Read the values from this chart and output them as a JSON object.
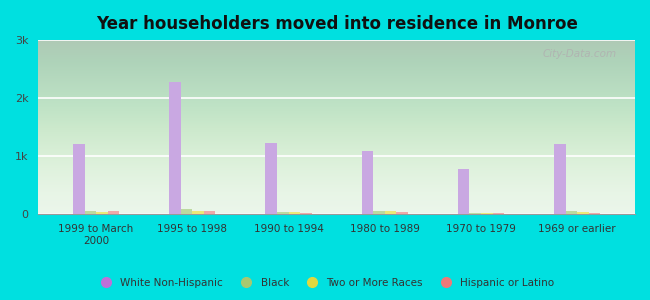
{
  "title": "Year householders moved into residence in Monroe",
  "categories": [
    "1999 to March\n2000",
    "1995 to 1998",
    "1990 to 1994",
    "1980 to 1989",
    "1970 to 1979",
    "1969 or earlier"
  ],
  "series": {
    "White Non-Hispanic": [
      1200,
      2280,
      1230,
      1080,
      780,
      1200
    ],
    "Black": [
      55,
      90,
      40,
      50,
      20,
      50
    ],
    "Two or More Races": [
      40,
      55,
      30,
      45,
      15,
      40
    ],
    "Hispanic or Latino": [
      60,
      45,
      20,
      30,
      20,
      20
    ]
  },
  "colors": {
    "White Non-Hispanic": "#c9a8e2",
    "Black": "#bdd9a0",
    "Two or More Races": "#ede878",
    "Hispanic or Latino": "#f0a8a8"
  },
  "legend_marker_colors": {
    "White Non-Hispanic": "#c070d8",
    "Black": "#a8c870",
    "Two or More Races": "#e0d840",
    "Hispanic or Latino": "#f07878"
  },
  "ylim": [
    0,
    3000
  ],
  "yticks": [
    0,
    1000,
    2000,
    3000
  ],
  "ytick_labels": [
    "0",
    "1k",
    "2k",
    "3k"
  ],
  "bg_color": "#00e0e0",
  "watermark": "City-Data.com",
  "bar_width": 0.12,
  "title_fontsize": 12
}
